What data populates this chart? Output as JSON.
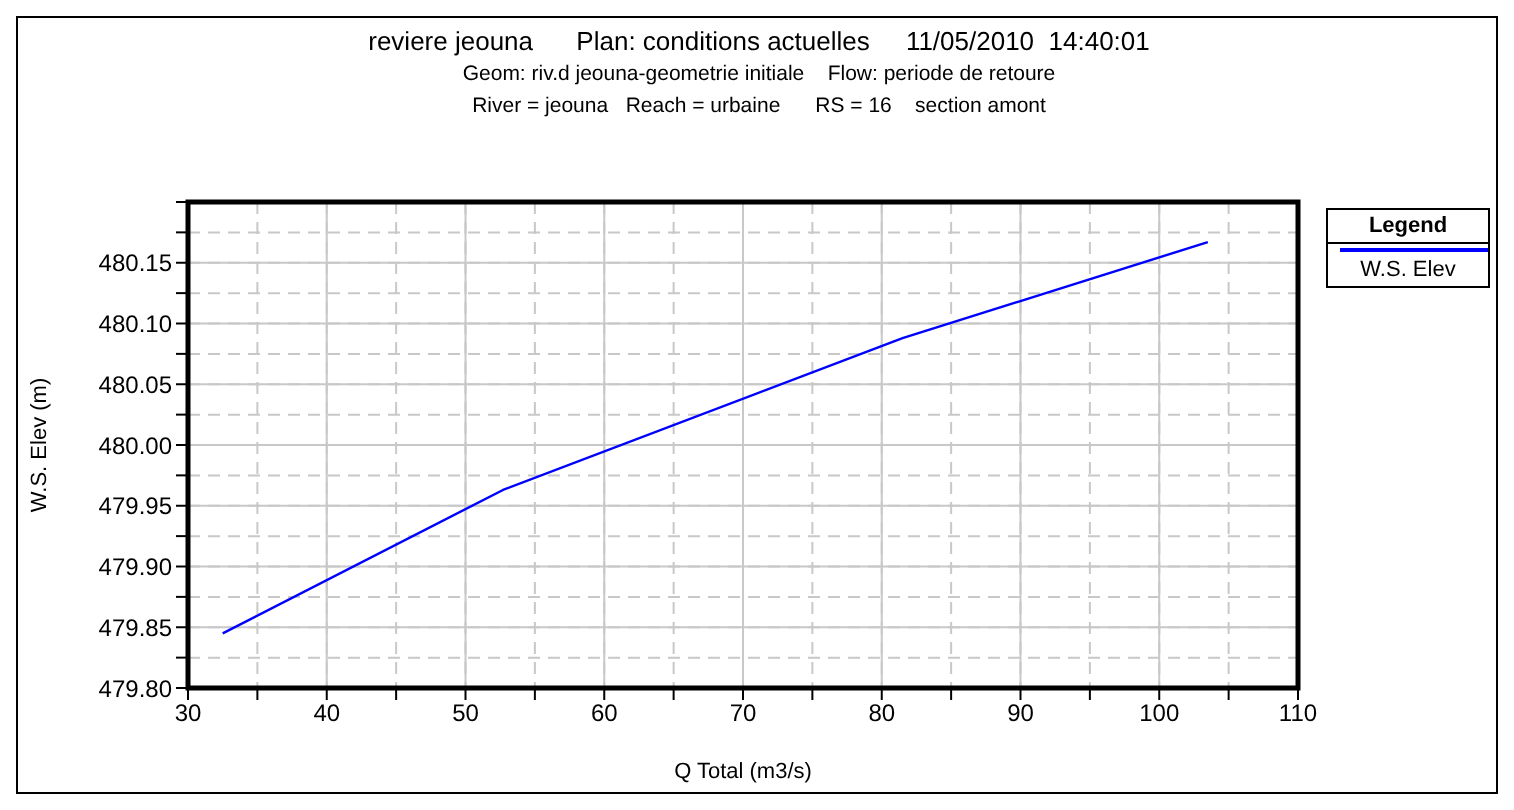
{
  "chart_data": {
    "type": "line",
    "title": "reviere jeouna      Plan: conditions actuelles     11/05/2010  14:40:01",
    "subtitle": "Geom: riv.d jeouna-geometrie initiale    Flow: periode de retoure",
    "annotations": [
      "River = jeouna   Reach = urbaine      RS = 16    section amont"
    ],
    "xlabel": "Q Total  (m3/s)",
    "ylabel": "W.S. Elev  (m)",
    "legend_title": "Legend",
    "legend": "right",
    "grid": true,
    "line_style": "solid",
    "marker": "none",
    "xlim": [
      30,
      110
    ],
    "xticks": [
      30,
      {
        "value": 35,
        "label": null
      },
      40,
      {
        "value": 45,
        "label": null
      },
      50,
      {
        "value": 55,
        "label": null
      },
      60,
      {
        "value": 65,
        "label": null
      },
      70,
      {
        "value": 75,
        "label": null
      },
      80,
      {
        "value": 85,
        "label": null
      },
      90,
      {
        "value": 95,
        "label": null
      },
      100,
      {
        "value": 105,
        "label": null
      },
      110
    ],
    "ylim": [
      479.8,
      480.2
    ],
    "yticks": [
      {
        "value": 479.8,
        "label": "479.80"
      },
      {
        "value": 479.825,
        "label": null
      },
      479.85,
      {
        "value": 479.875,
        "label": null
      },
      {
        "value": 479.9,
        "label": "479.90"
      },
      {
        "value": 479.925,
        "label": null
      },
      479.95,
      {
        "value": 479.975,
        "label": null
      },
      {
        "value": 480,
        "label": "480.00"
      },
      {
        "value": 480.025,
        "label": null
      },
      480.05,
      {
        "value": 480.075,
        "label": null
      },
      {
        "value": 480.1,
        "label": "480.10"
      },
      {
        "value": 480.125,
        "label": null
      },
      480.15,
      {
        "value": 480.175,
        "label": null
      },
      {
        "value": 480.2,
        "label": null
      }
    ],
    "x": [
      32.5,
      52.7,
      81.5,
      103.5
    ],
    "series": [
      {
        "name": "W.S. Elev",
        "color": "#0000ff",
        "values": [
          479.845,
          479.963,
          480.088,
          480.167
        ]
      }
    ]
  }
}
